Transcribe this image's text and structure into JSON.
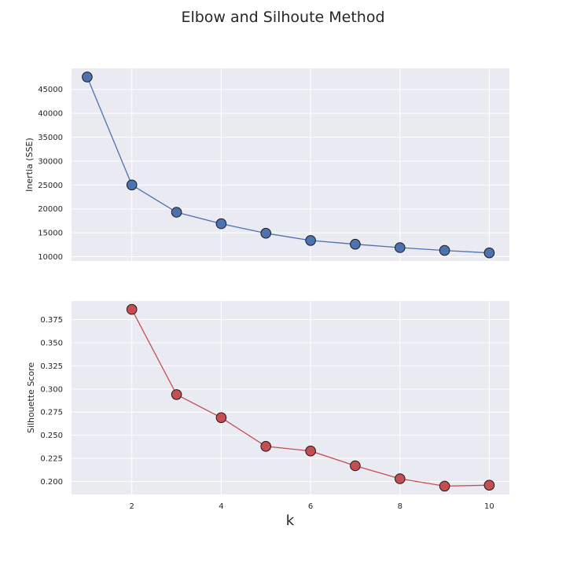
{
  "figure": {
    "suptitle": "Elbow and Silhoute Method",
    "xlabel": "k"
  },
  "chart_data": [
    {
      "type": "line",
      "title": "",
      "xlabel": "k",
      "ylabel": "Inertia (SSE)",
      "x": [
        1,
        2,
        3,
        4,
        5,
        6,
        7,
        8,
        9,
        10
      ],
      "series": [
        {
          "values": [
            47600,
            25000,
            19300,
            16900,
            14900,
            13400,
            12600,
            11900,
            11300,
            10800
          ]
        }
      ],
      "xlim": [
        0.65,
        10.45
      ],
      "ylim": [
        9100,
        49400
      ],
      "xticks": [
        2,
        4,
        6,
        8,
        10
      ],
      "yticks": [
        10000,
        15000,
        20000,
        25000,
        30000,
        35000,
        40000,
        45000
      ],
      "line_color": "#4c72b0",
      "marker_color": "#4c72b0",
      "grid": true
    },
    {
      "type": "line",
      "title": "",
      "xlabel": "k",
      "ylabel": "Silhouette Score",
      "x": [
        2,
        3,
        4,
        5,
        6,
        7,
        8,
        9,
        10
      ],
      "series": [
        {
          "values": [
            0.386,
            0.294,
            0.269,
            0.238,
            0.233,
            0.217,
            0.203,
            0.195,
            0.196
          ]
        }
      ],
      "xlim": [
        0.65,
        10.45
      ],
      "ylim": [
        0.186,
        0.395
      ],
      "xticks": [
        2,
        4,
        6,
        8,
        10
      ],
      "yticks": [
        0.2,
        0.225,
        0.25,
        0.275,
        0.3,
        0.325,
        0.35,
        0.375
      ],
      "line_color": "#c44e52",
      "marker_color": "#c44e52",
      "grid": true
    }
  ]
}
